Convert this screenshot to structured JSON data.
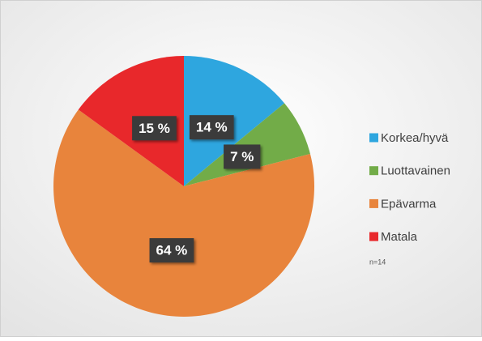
{
  "chart_data": {
    "type": "pie",
    "categories": [
      "Korkea/hyvä",
      "Luottavainen",
      "Epävarma",
      "Matala"
    ],
    "values": [
      14,
      7,
      64,
      15
    ],
    "value_labels": [
      "14 %",
      "7 %",
      "64 %",
      "15 %"
    ],
    "colors": [
      "#2ea6df",
      "#72ac48",
      "#e8843c",
      "#e8282b"
    ],
    "annotation": "n=14",
    "legend": "right"
  }
}
